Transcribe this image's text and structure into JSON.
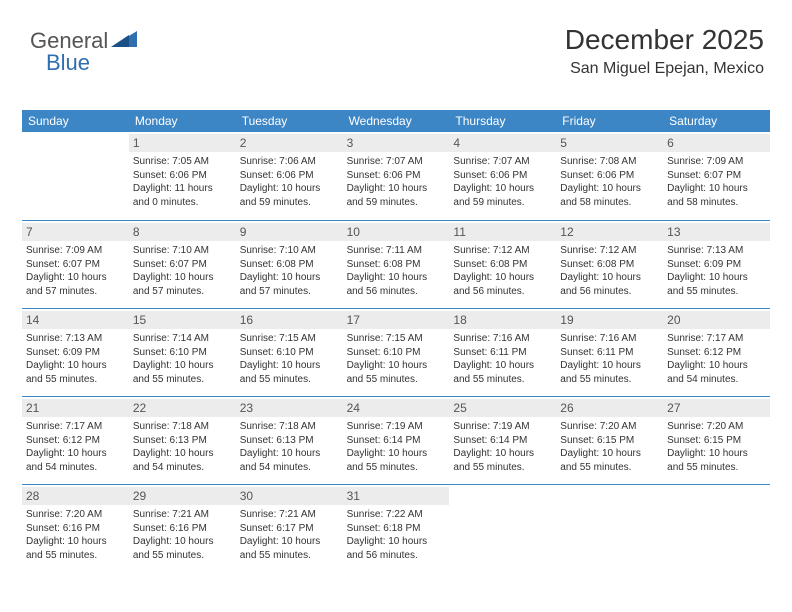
{
  "logo": {
    "word1": "General",
    "word2": "Blue",
    "brand_color": "#2f6fb0",
    "text_color": "#555555"
  },
  "header": {
    "month_title": "December 2025",
    "location": "San Miguel Epejan, Mexico"
  },
  "colors": {
    "header_bg": "#3d86c6",
    "header_text": "#ffffff",
    "daynum_bg": "#ececec",
    "daynum_text": "#555555",
    "body_text": "#333333",
    "rule": "#3d86c6",
    "page_bg": "#ffffff"
  },
  "day_headers": [
    "Sunday",
    "Monday",
    "Tuesday",
    "Wednesday",
    "Thursday",
    "Friday",
    "Saturday"
  ],
  "weeks": [
    [
      {
        "n": "",
        "sunrise": "",
        "sunset": "",
        "daylight": ""
      },
      {
        "n": "1",
        "sunrise": "Sunrise: 7:05 AM",
        "sunset": "Sunset: 6:06 PM",
        "daylight": "Daylight: 11 hours and 0 minutes."
      },
      {
        "n": "2",
        "sunrise": "Sunrise: 7:06 AM",
        "sunset": "Sunset: 6:06 PM",
        "daylight": "Daylight: 10 hours and 59 minutes."
      },
      {
        "n": "3",
        "sunrise": "Sunrise: 7:07 AM",
        "sunset": "Sunset: 6:06 PM",
        "daylight": "Daylight: 10 hours and 59 minutes."
      },
      {
        "n": "4",
        "sunrise": "Sunrise: 7:07 AM",
        "sunset": "Sunset: 6:06 PM",
        "daylight": "Daylight: 10 hours and 59 minutes."
      },
      {
        "n": "5",
        "sunrise": "Sunrise: 7:08 AM",
        "sunset": "Sunset: 6:06 PM",
        "daylight": "Daylight: 10 hours and 58 minutes."
      },
      {
        "n": "6",
        "sunrise": "Sunrise: 7:09 AM",
        "sunset": "Sunset: 6:07 PM",
        "daylight": "Daylight: 10 hours and 58 minutes."
      }
    ],
    [
      {
        "n": "7",
        "sunrise": "Sunrise: 7:09 AM",
        "sunset": "Sunset: 6:07 PM",
        "daylight": "Daylight: 10 hours and 57 minutes."
      },
      {
        "n": "8",
        "sunrise": "Sunrise: 7:10 AM",
        "sunset": "Sunset: 6:07 PM",
        "daylight": "Daylight: 10 hours and 57 minutes."
      },
      {
        "n": "9",
        "sunrise": "Sunrise: 7:10 AM",
        "sunset": "Sunset: 6:08 PM",
        "daylight": "Daylight: 10 hours and 57 minutes."
      },
      {
        "n": "10",
        "sunrise": "Sunrise: 7:11 AM",
        "sunset": "Sunset: 6:08 PM",
        "daylight": "Daylight: 10 hours and 56 minutes."
      },
      {
        "n": "11",
        "sunrise": "Sunrise: 7:12 AM",
        "sunset": "Sunset: 6:08 PM",
        "daylight": "Daylight: 10 hours and 56 minutes."
      },
      {
        "n": "12",
        "sunrise": "Sunrise: 7:12 AM",
        "sunset": "Sunset: 6:08 PM",
        "daylight": "Daylight: 10 hours and 56 minutes."
      },
      {
        "n": "13",
        "sunrise": "Sunrise: 7:13 AM",
        "sunset": "Sunset: 6:09 PM",
        "daylight": "Daylight: 10 hours and 55 minutes."
      }
    ],
    [
      {
        "n": "14",
        "sunrise": "Sunrise: 7:13 AM",
        "sunset": "Sunset: 6:09 PM",
        "daylight": "Daylight: 10 hours and 55 minutes."
      },
      {
        "n": "15",
        "sunrise": "Sunrise: 7:14 AM",
        "sunset": "Sunset: 6:10 PM",
        "daylight": "Daylight: 10 hours and 55 minutes."
      },
      {
        "n": "16",
        "sunrise": "Sunrise: 7:15 AM",
        "sunset": "Sunset: 6:10 PM",
        "daylight": "Daylight: 10 hours and 55 minutes."
      },
      {
        "n": "17",
        "sunrise": "Sunrise: 7:15 AM",
        "sunset": "Sunset: 6:10 PM",
        "daylight": "Daylight: 10 hours and 55 minutes."
      },
      {
        "n": "18",
        "sunrise": "Sunrise: 7:16 AM",
        "sunset": "Sunset: 6:11 PM",
        "daylight": "Daylight: 10 hours and 55 minutes."
      },
      {
        "n": "19",
        "sunrise": "Sunrise: 7:16 AM",
        "sunset": "Sunset: 6:11 PM",
        "daylight": "Daylight: 10 hours and 55 minutes."
      },
      {
        "n": "20",
        "sunrise": "Sunrise: 7:17 AM",
        "sunset": "Sunset: 6:12 PM",
        "daylight": "Daylight: 10 hours and 54 minutes."
      }
    ],
    [
      {
        "n": "21",
        "sunrise": "Sunrise: 7:17 AM",
        "sunset": "Sunset: 6:12 PM",
        "daylight": "Daylight: 10 hours and 54 minutes."
      },
      {
        "n": "22",
        "sunrise": "Sunrise: 7:18 AM",
        "sunset": "Sunset: 6:13 PM",
        "daylight": "Daylight: 10 hours and 54 minutes."
      },
      {
        "n": "23",
        "sunrise": "Sunrise: 7:18 AM",
        "sunset": "Sunset: 6:13 PM",
        "daylight": "Daylight: 10 hours and 54 minutes."
      },
      {
        "n": "24",
        "sunrise": "Sunrise: 7:19 AM",
        "sunset": "Sunset: 6:14 PM",
        "daylight": "Daylight: 10 hours and 55 minutes."
      },
      {
        "n": "25",
        "sunrise": "Sunrise: 7:19 AM",
        "sunset": "Sunset: 6:14 PM",
        "daylight": "Daylight: 10 hours and 55 minutes."
      },
      {
        "n": "26",
        "sunrise": "Sunrise: 7:20 AM",
        "sunset": "Sunset: 6:15 PM",
        "daylight": "Daylight: 10 hours and 55 minutes."
      },
      {
        "n": "27",
        "sunrise": "Sunrise: 7:20 AM",
        "sunset": "Sunset: 6:15 PM",
        "daylight": "Daylight: 10 hours and 55 minutes."
      }
    ],
    [
      {
        "n": "28",
        "sunrise": "Sunrise: 7:20 AM",
        "sunset": "Sunset: 6:16 PM",
        "daylight": "Daylight: 10 hours and 55 minutes."
      },
      {
        "n": "29",
        "sunrise": "Sunrise: 7:21 AM",
        "sunset": "Sunset: 6:16 PM",
        "daylight": "Daylight: 10 hours and 55 minutes."
      },
      {
        "n": "30",
        "sunrise": "Sunrise: 7:21 AM",
        "sunset": "Sunset: 6:17 PM",
        "daylight": "Daylight: 10 hours and 55 minutes."
      },
      {
        "n": "31",
        "sunrise": "Sunrise: 7:22 AM",
        "sunset": "Sunset: 6:18 PM",
        "daylight": "Daylight: 10 hours and 56 minutes."
      },
      {
        "n": "",
        "sunrise": "",
        "sunset": "",
        "daylight": ""
      },
      {
        "n": "",
        "sunrise": "",
        "sunset": "",
        "daylight": ""
      },
      {
        "n": "",
        "sunrise": "",
        "sunset": "",
        "daylight": ""
      }
    ]
  ]
}
